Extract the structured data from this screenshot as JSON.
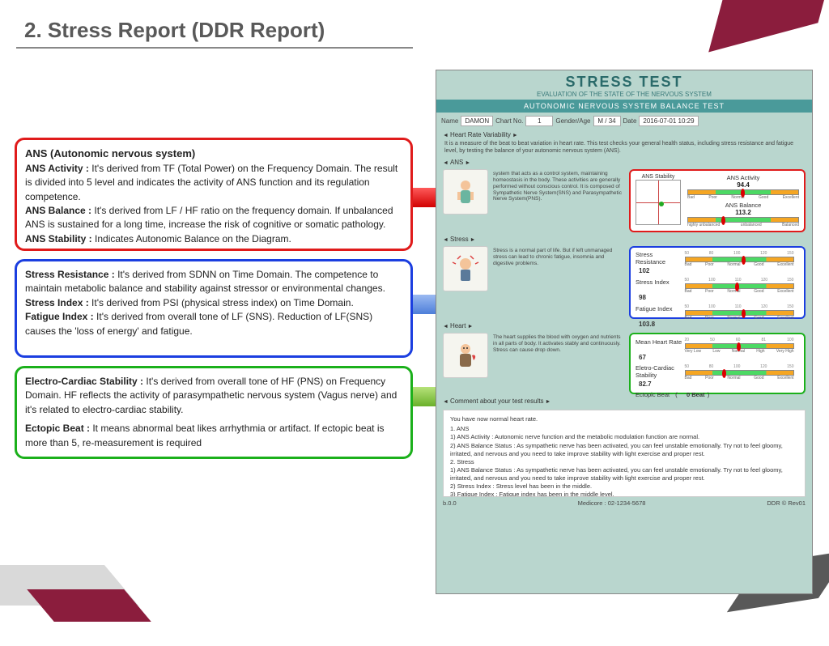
{
  "page": {
    "title": "2. Stress Report (DDR Report)"
  },
  "boxes": {
    "ans": {
      "heading": "ANS (Autonomic nervous system)",
      "activity_label": "ANS Activity :",
      "activity_text": " It's derived from TF (Total Power) on the Frequency Domain. The result is divided into 5 level and indicates the activity of ANS function and its regulation competence.",
      "balance_label": "ANS Balance :",
      "balance_text": " It's derived from LF / HF ratio on the frequency domain. If unbalanced ANS is sustained for a long time, increase the risk of cognitive or somatic pathology.",
      "stability_label": "ANS Stability :",
      "stability_text": " Indicates Autonomic Balance on the Diagram."
    },
    "stress": {
      "resist_label": "Stress Resistance :",
      "resist_text": " It's derived from SDNN on Time Domain. The competence to maintain metabolic balance and stability against stressor or environmental changes.",
      "index_label": "Stress Index :",
      "index_text": " It's derived from PSI (physical stress index) on Time Domain.",
      "fatigue_label": "Fatigue Index :",
      "fatigue_text": " It's derived from overall tone of LF (SNS). Reduction of LF(SNS) causes the 'loss of energy' and fatigue."
    },
    "heart": {
      "ecs_label": "Electro-Cardiac Stability :",
      "ecs_text": " It's derived from overall tone of HF (PNS) on Frequency Domain. HF reflects the activity of parasympathetic nervous system (Vagus nerve) and it's related to electro-cardiac stability.",
      "ectopic_label": "Ectopic Beat :",
      "ectopic_text": " It means abnormal beat likes arrhythmia or artifact. If ectopic beat is more than 5, re-measurement is required"
    }
  },
  "report": {
    "title": "STRESS TEST",
    "subtitle": "EVALUATION OF THE STATE OF THE NERVOUS SYSTEM",
    "band": "AUTONOMIC NERVOUS SYSTEM BALANCE TEST",
    "info": {
      "name_lbl": "Name",
      "name": "DAMON",
      "chart_lbl": "Chart No.",
      "chart": "1",
      "ga_lbl": "Gender/Age",
      "ga": "M / 34",
      "date_lbl": "Date",
      "date": "2016-07-01 10:29"
    },
    "hrv": {
      "header": "Heart Rate Variability",
      "desc": "It is a measure of the beat to beat variation in heart rate. This test checks your general health status, including stress resistance and fatigue level, by testing the balance of your autonomic nervous system (ANS)."
    },
    "ans_sec": {
      "header": "ANS",
      "midtext": "system that acts as a control system, maintaining homeostasis in the body. These activities are generally performed without conscious control. It is composed of Sympathetic Nerve System(SNS) and Parasympathetic Nerve System(PNS).",
      "stability_label": "ANS Stability",
      "activity": {
        "name": "ANS Activity",
        "value": "94.4",
        "ticks": [
          "50",
          "70",
          "90",
          "110",
          "130",
          "150"
        ],
        "labels": [
          "Bad",
          "Poor",
          "Normal",
          "Good",
          "Excellent"
        ],
        "marker_pct": 48
      },
      "balance": {
        "name": "ANS Balance",
        "value": "113.2",
        "ticks": [
          "-100",
          "-50",
          "0",
          "50",
          "100"
        ],
        "labels": [
          "highly unbalanced",
          "unbalanced",
          "Balanced"
        ],
        "marker_pct": 30
      }
    },
    "stress_sec": {
      "header": "Stress",
      "midtext": "Stress is a normal part of life. But if left unmanaged stress can lead to chronic fatigue, insomnia and digestive problems.",
      "resistance": {
        "name": "Stress Resistance",
        "value": "102",
        "ticks": [
          "50",
          "80",
          "100",
          "120",
          "150"
        ],
        "labels": [
          "Bad",
          "Poor",
          "Normal",
          "Good",
          "Excellent"
        ],
        "marker_pct": 52
      },
      "index": {
        "name": "Stress Index",
        "value": "98",
        "ticks": [
          "50",
          "100",
          "110",
          "120",
          "150"
        ],
        "labels": [
          "Bad",
          "Poor",
          "Normal",
          "Good",
          "Excellent"
        ],
        "marker_pct": 46
      },
      "fatigue": {
        "name": "Fatigue Index",
        "value": "103.8",
        "ticks": [
          "50",
          "100",
          "110",
          "120",
          "150"
        ],
        "labels": [
          "Bad",
          "Poor",
          "Normal",
          "Good",
          "Excellent"
        ],
        "marker_pct": 52
      }
    },
    "heart_sec": {
      "header": "Heart",
      "midtext": "The heart supplies the blood with oxygen and nutrients in all parts of body. It activates stably and continuously. Stress can cause drop down.",
      "mhr": {
        "name": "Mean Heart Rate",
        "value": "67",
        "ticks": [
          "20",
          "50",
          "60",
          "81",
          "100"
        ],
        "labels": [
          "Very Low",
          "Low",
          "Normal",
          "High",
          "Very High"
        ],
        "marker_pct": 48
      },
      "ecs": {
        "name": "Eletro-Cardiac Stability",
        "value": "82.7",
        "ticks": [
          "50",
          "80",
          "100",
          "120",
          "150"
        ],
        "labels": [
          "Bad",
          "Poor",
          "Normal",
          "Good",
          "Excellent"
        ],
        "marker_pct": 34
      },
      "ectopic": {
        "name": "Ectopic Beat",
        "value": "0 Beat"
      }
    },
    "comments": {
      "header": "Comment about your test results",
      "lead": "You have now normal heart rate.",
      "l1": "1. ANS",
      "l1a": " 1) ANS Activity : Autonomic nerve function and the metabolic modulation function are normal.",
      "l1b": " 2) ANS Balance Status : As sympathetic nerve has been activated, you can feel unstable emotionally. Try not to feel gloomy, irritated, and nervous and you need to take improve stability with light exercise and proper rest.",
      "l2": "2. Stress",
      "l2a": " 1) ANS Balance Status : As sympathetic nerve has been activated, you can feel unstable emotionally. Try not to feel gloomy, irritated, and nervous and you need to take improve stability with light exercise and proper rest.",
      "l2b": " 2) Stress Index : Stress level has been in the middle.",
      "l2c": " 3) Fatigue Index : Fatigue index has been in the middle level."
    },
    "footer": "Medicore : 02-1234-5678",
    "footnote_left": "b.0.0",
    "footnote_right": "DDR © Rev01"
  },
  "colors": {
    "ans": "#e01b1b",
    "stress": "#1b3ee0",
    "heart": "#1bb01b",
    "report_bg": "#b9d6ce",
    "band": "#4a9a9a"
  }
}
